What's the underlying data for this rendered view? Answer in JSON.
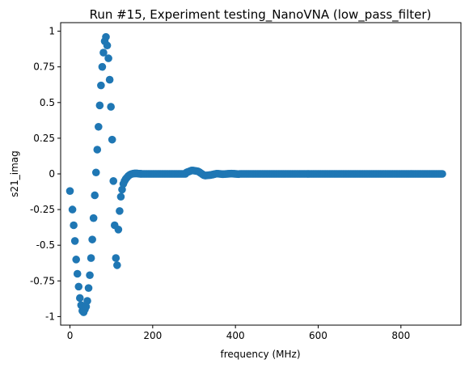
{
  "chart_data": {
    "type": "scatter",
    "title": "Run #15, Experiment testing_NanoVNA (low_pass_filter)",
    "xlabel": "frequency (MHz)",
    "ylabel": "s21_imag",
    "xlim": [
      -22.5,
      945
    ],
    "ylim": [
      -1.06,
      1.06
    ],
    "xticks": [
      0,
      200,
      400,
      600,
      800
    ],
    "xtick_labels": [
      "0",
      "200",
      "400",
      "600",
      "800"
    ],
    "yticks": [
      -1,
      -0.75,
      -0.5,
      -0.25,
      0,
      0.25,
      0.5,
      0.75,
      1
    ],
    "ytick_labels": [
      "-1",
      "-0.75",
      "-0.5",
      "-0.25",
      "0",
      "0.25",
      "0.5",
      "0.75",
      "1"
    ],
    "grid": false,
    "marker_color": "#1f77b4",
    "series": [
      {
        "x": [
          0,
          6,
          9,
          12,
          15,
          18,
          21,
          24,
          27,
          30,
          33,
          36,
          39,
          42,
          45,
          48,
          51,
          54,
          57,
          60,
          63,
          66,
          69,
          72,
          75,
          78,
          81,
          84,
          87,
          90,
          93,
          96,
          99,
          102,
          105,
          108,
          111,
          114,
          117,
          120,
          123,
          126,
          129,
          132,
          135,
          138,
          141,
          144,
          147,
          150,
          153,
          156,
          159,
          162,
          165,
          168,
          171
        ],
        "y": [
          -0.12,
          -0.25,
          -0.36,
          -0.47,
          -0.6,
          -0.7,
          -0.79,
          -0.87,
          -0.92,
          -0.96,
          -0.97,
          -0.95,
          -0.93,
          -0.89,
          -0.8,
          -0.71,
          -0.59,
          -0.46,
          -0.31,
          -0.15,
          0.01,
          0.17,
          0.33,
          0.48,
          0.62,
          0.75,
          0.85,
          0.93,
          0.96,
          0.9,
          0.81,
          0.66,
          0.47,
          0.24,
          -0.05,
          -0.36,
          -0.59,
          -0.64,
          -0.39,
          -0.26,
          -0.16,
          -0.11,
          -0.07,
          -0.05,
          -0.035,
          -0.025,
          -0.015,
          -0.008,
          -0.003,
          0,
          0.002,
          0.003,
          0.003,
          0.003,
          0.002,
          0.001,
          0.001
        ]
      },
      {
        "x_start": 171,
        "x_end": 900,
        "x_step": 3,
        "ripple": [
          {
            "x": 280,
            "y": 0.008
          },
          {
            "x": 295,
            "y": 0.025
          },
          {
            "x": 310,
            "y": 0.018
          },
          {
            "x": 325,
            "y": -0.012
          },
          {
            "x": 340,
            "y": -0.008
          },
          {
            "x": 355,
            "y": 0.002
          },
          {
            "x": 370,
            "y": -0.002
          },
          {
            "x": 390,
            "y": 0.002
          },
          {
            "x": 410,
            "y": -0.002
          }
        ]
      }
    ]
  }
}
